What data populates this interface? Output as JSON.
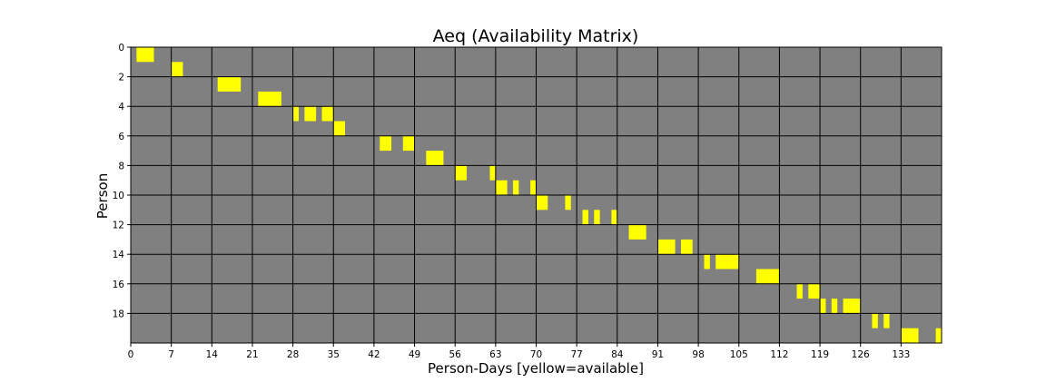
{
  "chart_data": {
    "type": "heatmap",
    "title": "Aeq (Availability Matrix)",
    "xlabel": "Person-Days [yellow=available]",
    "ylabel": "Person",
    "x_ticks": [
      0,
      7,
      14,
      21,
      28,
      35,
      42,
      49,
      56,
      63,
      70,
      77,
      84,
      91,
      98,
      105,
      112,
      119,
      126,
      133
    ],
    "y_ticks": [
      0,
      2,
      4,
      6,
      8,
      10,
      12,
      14,
      16,
      18
    ],
    "xlim": [
      0,
      140
    ],
    "ylim": [
      20,
      0
    ],
    "grid": true,
    "grid_step_x": 7,
    "grid_step_y": 2,
    "colors": {
      "available": "#ffff00",
      "unavailable": "#808080",
      "grid": "#000000"
    },
    "available_cells": [
      {
        "person": 0,
        "start": 1,
        "end": 4
      },
      {
        "person": 1,
        "start": 7,
        "end": 9
      },
      {
        "person": 2,
        "start": 15,
        "end": 19
      },
      {
        "person": 3,
        "start": 22,
        "end": 26
      },
      {
        "person": 4,
        "start": 28,
        "end": 29
      },
      {
        "person": 4,
        "start": 30,
        "end": 32
      },
      {
        "person": 4,
        "start": 33,
        "end": 35
      },
      {
        "person": 5,
        "start": 35,
        "end": 37
      },
      {
        "person": 6,
        "start": 43,
        "end": 45
      },
      {
        "person": 6,
        "start": 47,
        "end": 49
      },
      {
        "person": 7,
        "start": 51,
        "end": 54
      },
      {
        "person": 8,
        "start": 56,
        "end": 58
      },
      {
        "person": 8,
        "start": 62,
        "end": 63
      },
      {
        "person": 9,
        "start": 63,
        "end": 65
      },
      {
        "person": 9,
        "start": 66,
        "end": 67
      },
      {
        "person": 9,
        "start": 69,
        "end": 70
      },
      {
        "person": 10,
        "start": 70,
        "end": 72
      },
      {
        "person": 10,
        "start": 75,
        "end": 76
      },
      {
        "person": 11,
        "start": 78,
        "end": 79
      },
      {
        "person": 11,
        "start": 80,
        "end": 81
      },
      {
        "person": 11,
        "start": 83,
        "end": 84
      },
      {
        "person": 12,
        "start": 86,
        "end": 89
      },
      {
        "person": 13,
        "start": 91,
        "end": 94
      },
      {
        "person": 13,
        "start": 95,
        "end": 97
      },
      {
        "person": 14,
        "start": 99,
        "end": 100
      },
      {
        "person": 14,
        "start": 101,
        "end": 105
      },
      {
        "person": 15,
        "start": 108,
        "end": 112
      },
      {
        "person": 16,
        "start": 115,
        "end": 116
      },
      {
        "person": 16,
        "start": 117,
        "end": 119
      },
      {
        "person": 17,
        "start": 119,
        "end": 120
      },
      {
        "person": 17,
        "start": 121,
        "end": 122
      },
      {
        "person": 17,
        "start": 123,
        "end": 126
      },
      {
        "person": 18,
        "start": 128,
        "end": 129
      },
      {
        "person": 18,
        "start": 130,
        "end": 131
      },
      {
        "person": 19,
        "start": 133,
        "end": 136
      },
      {
        "person": 19,
        "start": 139,
        "end": 140
      }
    ]
  }
}
